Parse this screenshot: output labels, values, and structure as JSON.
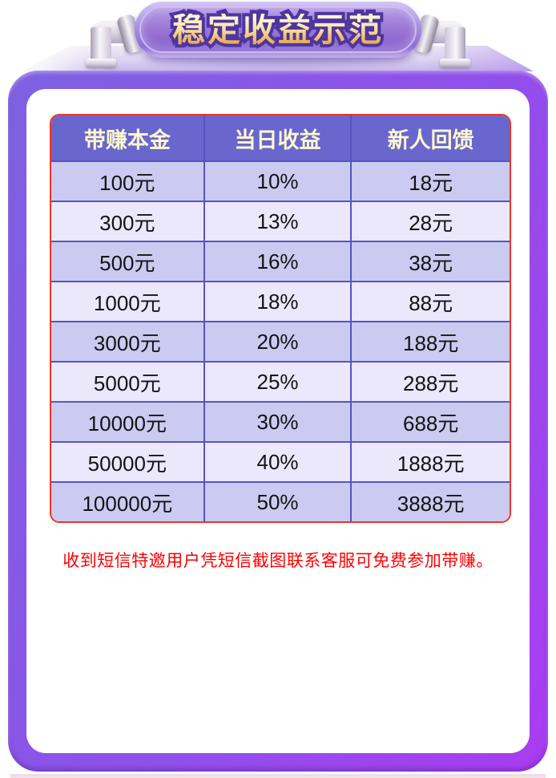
{
  "banner": {
    "title": "稳定收益示范"
  },
  "table": {
    "headers": [
      "带赚本金",
      "当日收益",
      "新人回馈"
    ],
    "rows": [
      [
        "100元",
        "10%",
        "18元"
      ],
      [
        "300元",
        "13%",
        "28元"
      ],
      [
        "500元",
        "16%",
        "38元"
      ],
      [
        "1000元",
        "18%",
        "88元"
      ],
      [
        "3000元",
        "20%",
        "188元"
      ],
      [
        "5000元",
        "25%",
        "288元"
      ],
      [
        "10000元",
        "30%",
        "688元"
      ],
      [
        "50000元",
        "40%",
        "1888元"
      ],
      [
        "100000元",
        "50%",
        "3888元"
      ]
    ]
  },
  "notice": {
    "text": "收到短信特邀用户凭短信截图联系客服可免费参加带赚。"
  },
  "colors": {
    "header-bg": "#6966ce",
    "header-text": "#fcf8cf",
    "row-dark": "#cbcaf1",
    "row-light": "#eae8fa",
    "cell-border": "#5753c1",
    "table-border": "#ee3526",
    "notice-text": "#fe0000",
    "frame-start": "#7e61e2",
    "frame-end": "#a93cf1",
    "banner-gold-top": "#fdf4d2",
    "banner-gold-bottom": "#eaa84d",
    "banner-stroke": "#4e35a0"
  }
}
